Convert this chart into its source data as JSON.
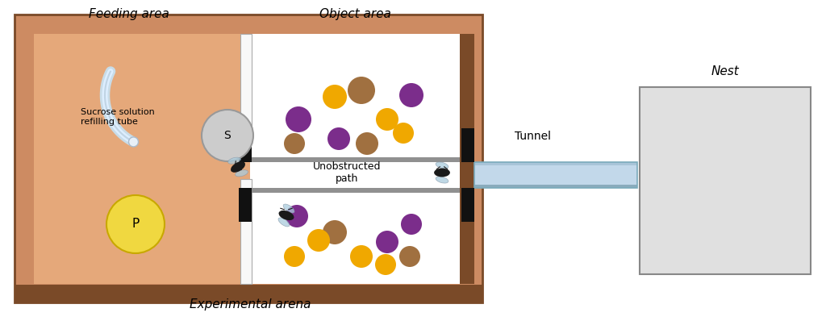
{
  "bg_color": "#ffffff",
  "arena_outer_color": "#cd8b62",
  "arena_floor_color": "#e5a87a",
  "arena_dark_wall": "#7a4a28",
  "object_bg": "#ffffff",
  "tunnel_color": "#c2d8ea",
  "tunnel_border_top": "#a8c4d8",
  "tunnel_border_bot": "#8aabbc",
  "nest_color": "#e0e0e0",
  "nest_border": "#888888",
  "door_color": "#111111",
  "divider_color": "#909090",
  "S_color": "#cccccc",
  "S_border": "#999999",
  "P_color": "#f0d840",
  "P_border": "#c8a800",
  "tube_color": "#c8dce8",
  "tube_highlight": "#e0ecf4",
  "title_feeding": "Feeding area",
  "title_object": "Object area",
  "title_tunnel": "Tunnel",
  "title_nest": "Nest",
  "title_arena": "Experimental arena",
  "label_S": "S",
  "label_P": "P",
  "label_path": "Unobstructed\npath",
  "label_sucrose": "Sucrose solution\nrefilling tube",
  "purple": "#7b2d8b",
  "orange": "#f0a800",
  "brown_ball": "#a07040",
  "top_balls": [
    [
      370,
      148,
      "#7b2d8b",
      16
    ],
    [
      415,
      120,
      "#f0a800",
      15
    ],
    [
      448,
      112,
      "#a07040",
      17
    ],
    [
      510,
      118,
      "#7b2d8b",
      15
    ],
    [
      480,
      148,
      "#f0a800",
      14
    ],
    [
      420,
      172,
      "#7b2d8b",
      14
    ],
    [
      455,
      178,
      "#a07040",
      14
    ],
    [
      500,
      165,
      "#f0a800",
      13
    ],
    [
      365,
      178,
      "#a07040",
      13
    ]
  ],
  "bot_balls": [
    [
      368,
      268,
      "#7b2d8b",
      14
    ],
    [
      415,
      288,
      "#a07040",
      15
    ],
    [
      480,
      300,
      "#7b2d8b",
      14
    ],
    [
      510,
      278,
      "#7b2d8b",
      13
    ],
    [
      448,
      318,
      "#f0a800",
      14
    ],
    [
      478,
      328,
      "#f0a800",
      13
    ],
    [
      508,
      318,
      "#a07040",
      13
    ],
    [
      365,
      318,
      "#f0a800",
      13
    ],
    [
      395,
      298,
      "#f0a800",
      14
    ]
  ]
}
